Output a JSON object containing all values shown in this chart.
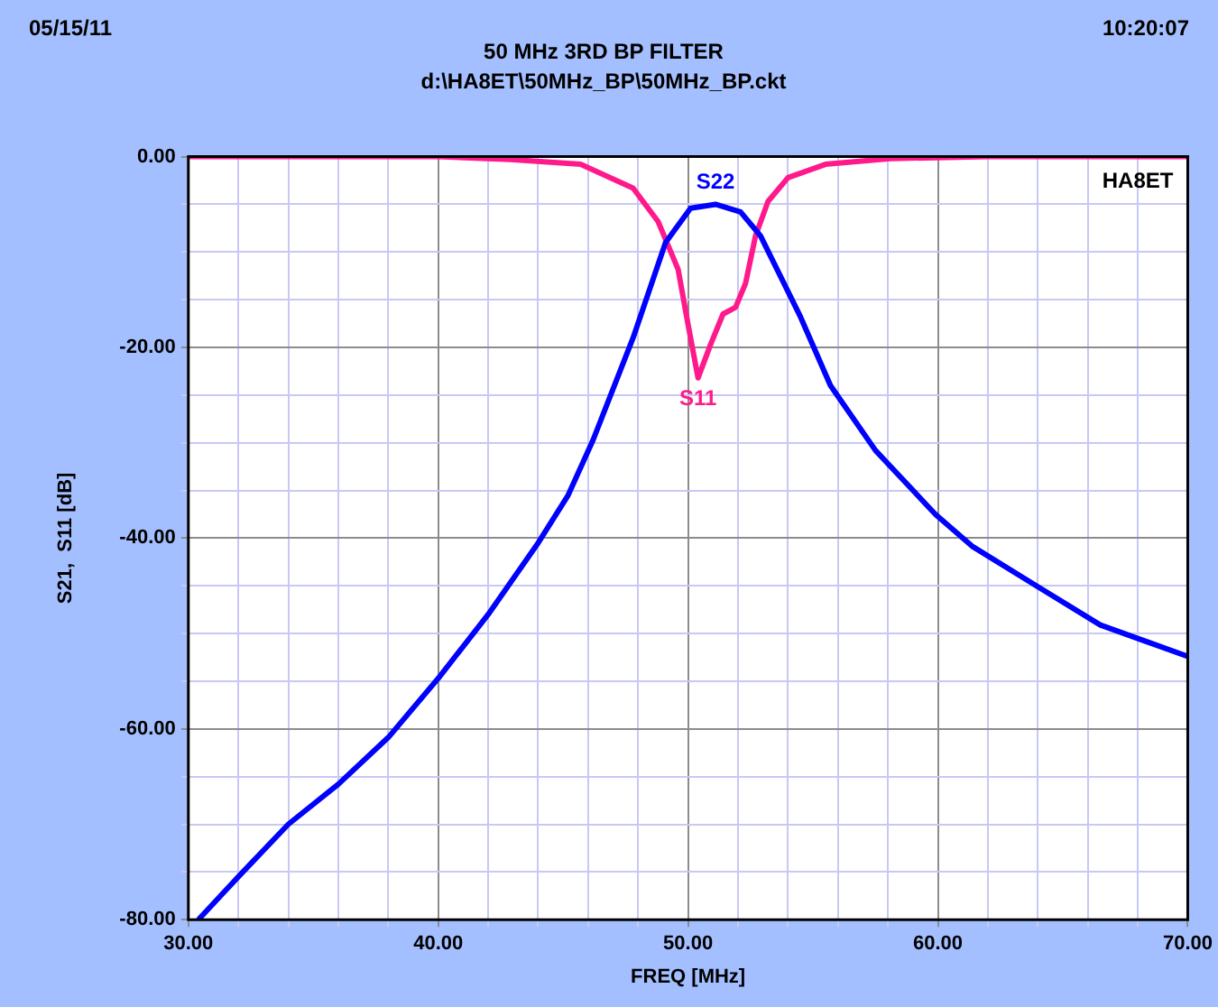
{
  "chart_data": {
    "type": "line",
    "title": "50 MHz 3RD BP FILTER",
    "subtitle": "d:\\HA8ET\\50MHz_BP\\50MHz_BP.ckt",
    "xlabel": "FREQ [MHz]",
    "ylabel": "S21,  S11 [dB]",
    "annotations": [
      "05/15/11",
      "10:20:07",
      "HA8ET"
    ],
    "series": [
      {
        "name": "S22",
        "color": "#0000ff",
        "x": [
          30.4,
          32,
          34,
          36,
          38,
          40,
          42,
          44,
          45.2,
          46.2,
          47.8,
          49.1,
          50.1,
          51.1,
          52.1,
          52.9,
          54.5,
          55.7,
          57.5,
          59.9,
          61.4,
          64,
          66.5,
          70
        ],
        "values": [
          -80,
          -75.5,
          -70,
          -65.8,
          -60.9,
          -54.7,
          -48,
          -40.5,
          -35.5,
          -29.7,
          -19,
          -9,
          -5.4,
          -5,
          -5.8,
          -8.3,
          -16.8,
          -24,
          -30.8,
          -37.5,
          -40.9,
          -45.1,
          -49.1,
          -52.4
        ]
      },
      {
        "name": "S11",
        "color": "#ff1a8c",
        "x": [
          30,
          40,
          42.9,
          45.7,
          47.8,
          48.8,
          49.6,
          50,
          50.4,
          50.9,
          51.4,
          51.9,
          52.3,
          52.7,
          53.2,
          54,
          55.5,
          58.1,
          62,
          70
        ],
        "values": [
          0,
          0,
          -0.3,
          -0.8,
          -3.3,
          -6.8,
          -11.8,
          -17.6,
          -23.2,
          -19.7,
          -16.5,
          -15.8,
          -13.3,
          -8.3,
          -4.7,
          -2.2,
          -0.8,
          -0.2,
          0,
          0
        ]
      }
    ],
    "xlim": [
      30,
      70
    ],
    "xticks": [
      {
        "value": 30,
        "label": "30.00"
      },
      {
        "value": 32,
        "label": null
      },
      {
        "value": 34,
        "label": null
      },
      {
        "value": 36,
        "label": null
      },
      {
        "value": 38,
        "label": null
      },
      {
        "value": 40,
        "label": "40.00"
      },
      {
        "value": 42,
        "label": null
      },
      {
        "value": 44,
        "label": null
      },
      {
        "value": 46,
        "label": null
      },
      {
        "value": 48,
        "label": null
      },
      {
        "value": 50,
        "label": "50.00"
      },
      {
        "value": 52,
        "label": null
      },
      {
        "value": 54,
        "label": null
      },
      {
        "value": 56,
        "label": null
      },
      {
        "value": 58,
        "label": null
      },
      {
        "value": 60,
        "label": "60.00"
      },
      {
        "value": 62,
        "label": null
      },
      {
        "value": 64,
        "label": null
      },
      {
        "value": 66,
        "label": null
      },
      {
        "value": 68,
        "label": null
      },
      {
        "value": 70,
        "label": "70.00"
      }
    ],
    "ylim": [
      -80,
      0
    ],
    "yticks": [
      {
        "value": -80,
        "label": "-80.00"
      },
      {
        "value": -75,
        "label": null
      },
      {
        "value": -70,
        "label": null
      },
      {
        "value": -65,
        "label": null
      },
      {
        "value": -60,
        "label": "-60.00"
      },
      {
        "value": -55,
        "label": null
      },
      {
        "value": -50,
        "label": null
      },
      {
        "value": -45,
        "label": null
      },
      {
        "value": -40,
        "label": "-40.00"
      },
      {
        "value": -35,
        "label": null
      },
      {
        "value": -30,
        "label": null
      },
      {
        "value": -25,
        "label": null
      },
      {
        "value": -20,
        "label": "-20.00"
      },
      {
        "value": -15,
        "label": null
      },
      {
        "value": -10,
        "label": null
      },
      {
        "value": -5,
        "label": null
      },
      {
        "value": 0,
        "label": "0.00"
      }
    ],
    "grid": true,
    "legend": false,
    "marker": "none",
    "line_style": "solid"
  }
}
